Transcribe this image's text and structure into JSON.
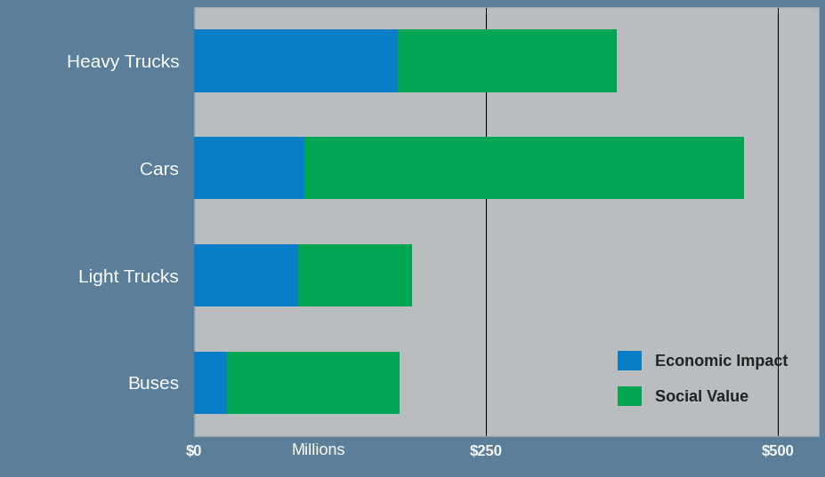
{
  "chart_data": {
    "type": "bar",
    "orientation": "horizontal",
    "stacked": true,
    "categories": [
      "Heavy Trucks",
      "Cars",
      "Light Trucks",
      "Buses"
    ],
    "series": [
      {
        "name": "Economic Impact",
        "color": "#0a7dc9",
        "values": [
          175,
          95,
          89,
          28
        ]
      },
      {
        "name": "Social Value",
        "color": "#00a651",
        "values": [
          187,
          376,
          98,
          148
        ]
      }
    ],
    "x_label": "Millions",
    "xlim": [
      0,
      535
    ],
    "xticks": [
      {
        "value": 0,
        "label": "$0"
      },
      {
        "value": 250,
        "label": "$250"
      },
      {
        "value": 500,
        "label": "$500"
      }
    ],
    "grid": true,
    "legend": "lower right"
  }
}
